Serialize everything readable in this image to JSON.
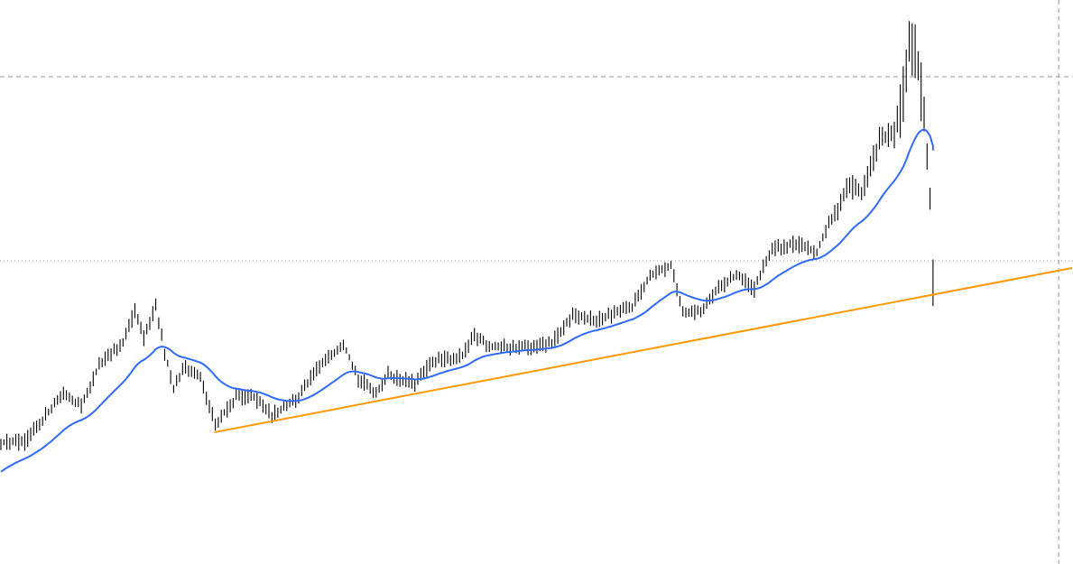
{
  "chart_data": {
    "type": "ohlc",
    "title": "",
    "xlabel": "",
    "ylabel": "",
    "xlim": [
      0,
      360
    ],
    "ylim": [
      0,
      625
    ],
    "grid": false,
    "price_path_anchors": [
      [
        0,
        135
      ],
      [
        8,
        135
      ],
      [
        14,
        160
      ],
      [
        21,
        190
      ],
      [
        27,
        175
      ],
      [
        33,
        220
      ],
      [
        41,
        245
      ],
      [
        45,
        280
      ],
      [
        48,
        250
      ],
      [
        52,
        285
      ],
      [
        55,
        235
      ],
      [
        58,
        195
      ],
      [
        62,
        220
      ],
      [
        67,
        205
      ],
      [
        72,
        155
      ],
      [
        79,
        185
      ],
      [
        85,
        185
      ],
      [
        91,
        165
      ],
      [
        100,
        185
      ],
      [
        106,
        215
      ],
      [
        115,
        245
      ],
      [
        120,
        205
      ],
      [
        126,
        190
      ],
      [
        130,
        210
      ],
      [
        139,
        200
      ],
      [
        145,
        225
      ],
      [
        155,
        230
      ],
      [
        159,
        253
      ],
      [
        165,
        240
      ],
      [
        179,
        240
      ],
      [
        185,
        245
      ],
      [
        192,
        275
      ],
      [
        200,
        270
      ],
      [
        212,
        285
      ],
      [
        218,
        320
      ],
      [
        225,
        330
      ],
      [
        229,
        280
      ],
      [
        235,
        280
      ],
      [
        241,
        305
      ],
      [
        247,
        320
      ],
      [
        253,
        305
      ],
      [
        259,
        350
      ],
      [
        267,
        355
      ],
      [
        274,
        345
      ],
      [
        277,
        370
      ],
      [
        285,
        420
      ],
      [
        289,
        410
      ],
      [
        295,
        470
      ],
      [
        300,
        475
      ],
      [
        303,
        520
      ],
      [
        305,
        585
      ],
      [
        308,
        555
      ],
      [
        310,
        495
      ],
      [
        312,
        405
      ],
      [
        313,
        315
      ]
    ],
    "moving_average": {
      "color": "#2f6bff",
      "period": 28
    },
    "trendline": {
      "color": "#ff9900",
      "from": [
        72,
        146
      ],
      "to": [
        360,
        328
      ]
    },
    "horizontal_levels": [
      {
        "price": 540,
        "style": "dashed",
        "color": "#999999"
      },
      {
        "price": 336,
        "style": "dotted",
        "color": "#999999"
      }
    ],
    "vertical_marker": {
      "bar": 355.5,
      "style": "dashed",
      "color": "#999999"
    },
    "bar_color": "#000000"
  }
}
